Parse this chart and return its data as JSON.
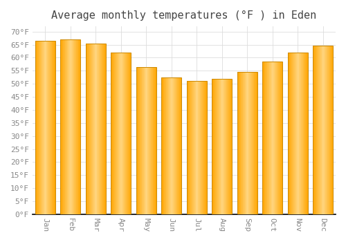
{
  "title": "Average monthly temperatures (°F ) in Eden",
  "months": [
    "Jan",
    "Feb",
    "Mar",
    "Apr",
    "May",
    "Jun",
    "Jul",
    "Aug",
    "Sep",
    "Oct",
    "Nov",
    "Dec"
  ],
  "values": [
    66.5,
    67.0,
    65.5,
    62.0,
    56.5,
    52.5,
    51.0,
    52.0,
    54.5,
    58.5,
    62.0,
    64.5
  ],
  "bar_color_main": "#FFA500",
  "bar_color_light": "#FFD580",
  "bar_edge_color": "#CC8800",
  "background_color": "#FFFFFF",
  "grid_color": "#DDDDDD",
  "ylim": [
    0,
    72
  ],
  "title_fontsize": 11,
  "tick_fontsize": 8,
  "label_color": "#888888",
  "title_color": "#444444"
}
